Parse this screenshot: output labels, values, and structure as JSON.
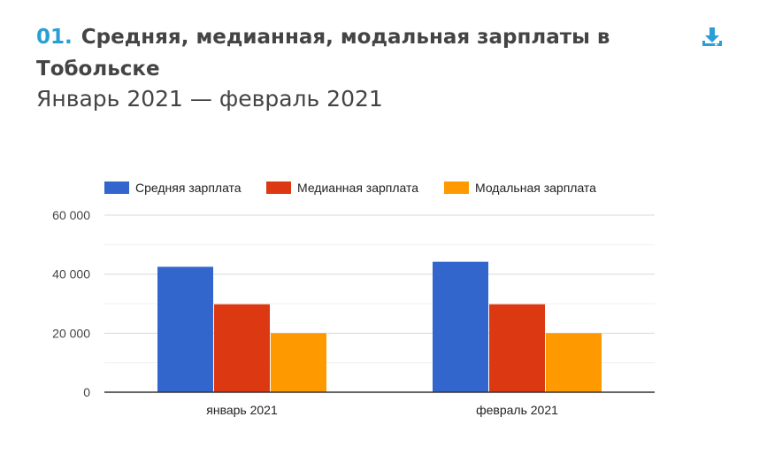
{
  "header": {
    "number": "01.",
    "title": "Средняя, медианная, модальная зарплаты в Тобольске",
    "subtitle": "Январь 2021 — февраль 2021"
  },
  "download": {
    "icon": "download-icon",
    "color": "#2a9fd6"
  },
  "chart_data": {
    "type": "bar",
    "categories": [
      "январь 2021",
      "февраль 2021"
    ],
    "series": [
      {
        "name": "Средняя зарплата",
        "color": "#3366cc",
        "values": [
          42500,
          44200
        ]
      },
      {
        "name": "Медианная зарплата",
        "color": "#dc3912",
        "values": [
          29800,
          29800
        ]
      },
      {
        "name": "Модальная зарплата",
        "color": "#ff9900",
        "values": [
          20000,
          20000
        ]
      }
    ],
    "yticks": [
      {
        "value": 0,
        "label": "0"
      },
      {
        "value": 20000,
        "label": "20 000"
      },
      {
        "value": 40000,
        "label": "40 000"
      },
      {
        "value": 60000,
        "label": "60 000"
      }
    ],
    "ylim": [
      0,
      60000
    ],
    "minor_grid": [
      10000,
      30000,
      50000
    ],
    "legend_position": "top",
    "grid": true
  }
}
